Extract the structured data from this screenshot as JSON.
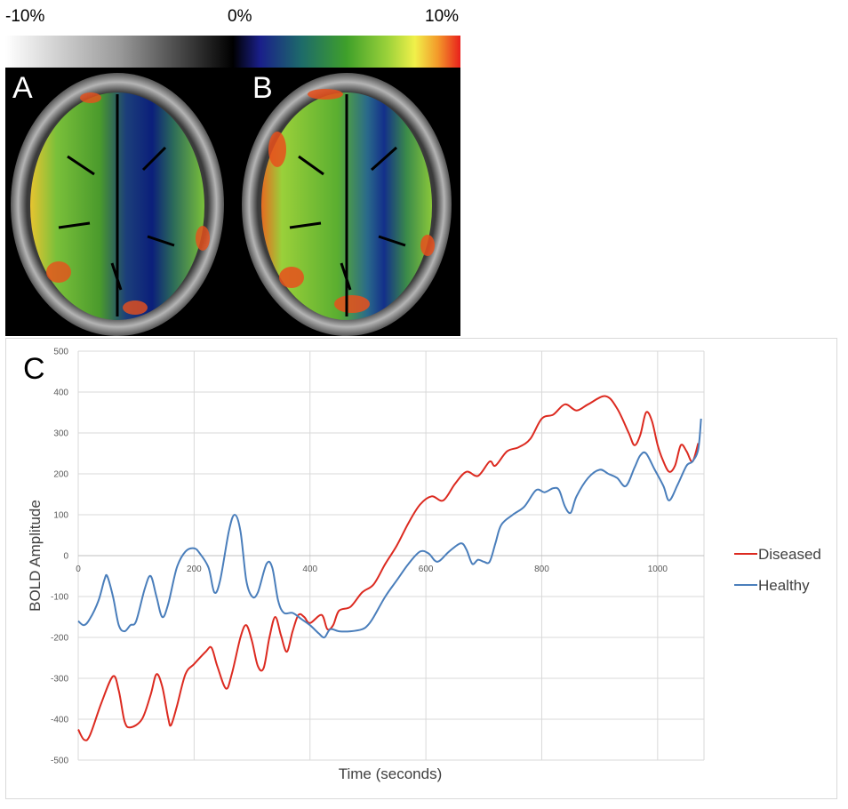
{
  "colorbar": {
    "labels": {
      "negative": "-10%",
      "zero": "0%",
      "positive": "10%"
    }
  },
  "panels": {
    "a": "A",
    "b": "B",
    "c": "C"
  },
  "chart_data": {
    "type": "line",
    "xlabel": "Time (seconds)",
    "ylabel": "BOLD Amplitude",
    "xlim": [
      0,
      1080
    ],
    "ylim": [
      -500,
      500
    ],
    "xticks": [
      0,
      200,
      400,
      600,
      800,
      1000
    ],
    "yticks": [
      -500,
      -400,
      -300,
      -200,
      -100,
      0,
      100,
      200,
      300,
      400,
      500
    ],
    "xtick_labels": [
      "0",
      "200",
      "400",
      "600",
      "800",
      "1000"
    ],
    "ytick_labels": [
      "-500",
      "-400",
      "-300",
      "-200",
      "-100",
      "0",
      "100",
      "200",
      "300",
      "400",
      "500"
    ],
    "grid": true,
    "legend": "right",
    "series": [
      {
        "name": "Diseased",
        "color": "#dc2a20",
        "points": [
          [
            0,
            -425
          ],
          [
            10,
            -450
          ],
          [
            20,
            -440
          ],
          [
            40,
            -360
          ],
          [
            60,
            -295
          ],
          [
            70,
            -330
          ],
          [
            80,
            -405
          ],
          [
            90,
            -420
          ],
          [
            110,
            -400
          ],
          [
            125,
            -340
          ],
          [
            135,
            -290
          ],
          [
            145,
            -320
          ],
          [
            155,
            -395
          ],
          [
            160,
            -415
          ],
          [
            170,
            -370
          ],
          [
            185,
            -290
          ],
          [
            200,
            -265
          ],
          [
            220,
            -235
          ],
          [
            230,
            -225
          ],
          [
            240,
            -270
          ],
          [
            255,
            -325
          ],
          [
            265,
            -290
          ],
          [
            280,
            -200
          ],
          [
            290,
            -170
          ],
          [
            300,
            -210
          ],
          [
            310,
            -270
          ],
          [
            320,
            -275
          ],
          [
            330,
            -200
          ],
          [
            340,
            -150
          ],
          [
            350,
            -195
          ],
          [
            360,
            -235
          ],
          [
            370,
            -185
          ],
          [
            380,
            -145
          ],
          [
            390,
            -150
          ],
          [
            400,
            -165
          ],
          [
            420,
            -145
          ],
          [
            430,
            -180
          ],
          [
            440,
            -170
          ],
          [
            450,
            -135
          ],
          [
            470,
            -125
          ],
          [
            490,
            -90
          ],
          [
            510,
            -70
          ],
          [
            530,
            -20
          ],
          [
            550,
            25
          ],
          [
            570,
            80
          ],
          [
            590,
            125
          ],
          [
            610,
            145
          ],
          [
            630,
            135
          ],
          [
            650,
            175
          ],
          [
            670,
            205
          ],
          [
            690,
            195
          ],
          [
            710,
            230
          ],
          [
            720,
            220
          ],
          [
            740,
            255
          ],
          [
            760,
            265
          ],
          [
            780,
            285
          ],
          [
            800,
            335
          ],
          [
            820,
            345
          ],
          [
            840,
            370
          ],
          [
            860,
            355
          ],
          [
            880,
            370
          ],
          [
            910,
            390
          ],
          [
            930,
            360
          ],
          [
            950,
            300
          ],
          [
            960,
            270
          ],
          [
            970,
            295
          ],
          [
            980,
            350
          ],
          [
            990,
            330
          ],
          [
            1000,
            270
          ],
          [
            1010,
            230
          ],
          [
            1020,
            205
          ],
          [
            1030,
            220
          ],
          [
            1040,
            270
          ],
          [
            1050,
            255
          ],
          [
            1060,
            230
          ],
          [
            1070,
            275
          ]
        ]
      },
      {
        "name": "Healthy",
        "color": "#4a7ebb",
        "points": [
          [
            0,
            -160
          ],
          [
            10,
            -170
          ],
          [
            20,
            -155
          ],
          [
            35,
            -110
          ],
          [
            45,
            -60
          ],
          [
            50,
            -50
          ],
          [
            60,
            -100
          ],
          [
            70,
            -170
          ],
          [
            80,
            -185
          ],
          [
            90,
            -170
          ],
          [
            100,
            -160
          ],
          [
            115,
            -80
          ],
          [
            125,
            -50
          ],
          [
            135,
            -100
          ],
          [
            145,
            -150
          ],
          [
            155,
            -120
          ],
          [
            170,
            -30
          ],
          [
            185,
            10
          ],
          [
            200,
            18
          ],
          [
            210,
            5
          ],
          [
            225,
            -30
          ],
          [
            235,
            -90
          ],
          [
            245,
            -60
          ],
          [
            260,
            60
          ],
          [
            270,
            100
          ],
          [
            280,
            60
          ],
          [
            290,
            -60
          ],
          [
            300,
            -100
          ],
          [
            310,
            -90
          ],
          [
            325,
            -20
          ],
          [
            335,
            -30
          ],
          [
            345,
            -110
          ],
          [
            355,
            -140
          ],
          [
            370,
            -140
          ],
          [
            385,
            -155
          ],
          [
            400,
            -170
          ],
          [
            415,
            -190
          ],
          [
            425,
            -200
          ],
          [
            435,
            -180
          ],
          [
            450,
            -185
          ],
          [
            470,
            -185
          ],
          [
            490,
            -180
          ],
          [
            500,
            -170
          ],
          [
            510,
            -150
          ],
          [
            530,
            -100
          ],
          [
            550,
            -60
          ],
          [
            570,
            -20
          ],
          [
            590,
            10
          ],
          [
            605,
            5
          ],
          [
            620,
            -15
          ],
          [
            640,
            10
          ],
          [
            660,
            30
          ],
          [
            670,
            15
          ],
          [
            680,
            -20
          ],
          [
            690,
            -10
          ],
          [
            700,
            -15
          ],
          [
            710,
            -15
          ],
          [
            720,
            30
          ],
          [
            730,
            75
          ],
          [
            750,
            100
          ],
          [
            770,
            120
          ],
          [
            790,
            160
          ],
          [
            805,
            155
          ],
          [
            820,
            165
          ],
          [
            830,
            160
          ],
          [
            840,
            120
          ],
          [
            850,
            105
          ],
          [
            860,
            145
          ],
          [
            880,
            190
          ],
          [
            900,
            210
          ],
          [
            915,
            200
          ],
          [
            930,
            190
          ],
          [
            945,
            170
          ],
          [
            960,
            215
          ],
          [
            970,
            245
          ],
          [
            980,
            250
          ],
          [
            995,
            210
          ],
          [
            1010,
            170
          ],
          [
            1020,
            135
          ],
          [
            1035,
            175
          ],
          [
            1050,
            220
          ],
          [
            1060,
            230
          ],
          [
            1070,
            260
          ],
          [
            1075,
            335
          ]
        ]
      }
    ]
  }
}
